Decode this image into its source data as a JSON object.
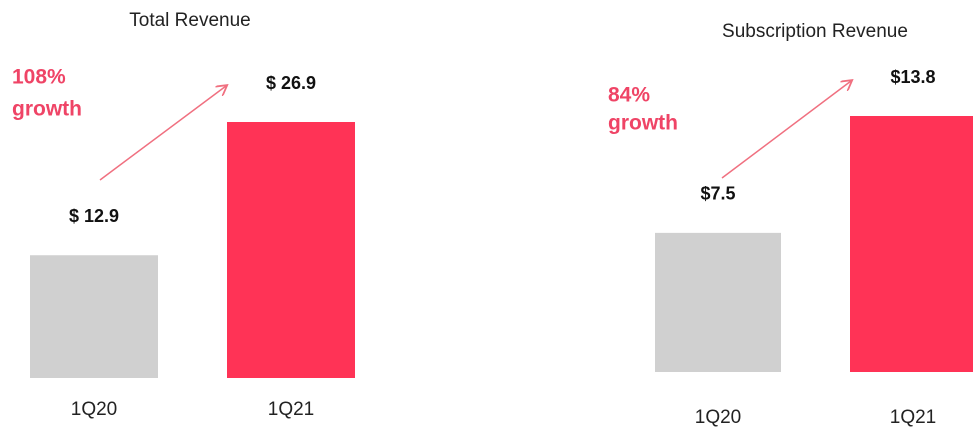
{
  "chart_data": [
    {
      "type": "bar",
      "title": "Total Revenue",
      "categories": [
        "1Q20",
        "1Q21"
      ],
      "values": [
        12.9,
        26.9
      ],
      "value_labels": [
        "$ 12.9",
        "$ 26.9"
      ],
      "colors": [
        "#d0d0d0",
        "#ff3356"
      ],
      "annotation": [
        "108%",
        "growth"
      ]
    },
    {
      "type": "bar",
      "title": "Subscription Revenue",
      "categories": [
        "1Q20",
        "1Q21"
      ],
      "values": [
        7.5,
        13.8
      ],
      "value_labels": [
        "$7.5",
        "$13.8"
      ],
      "colors": [
        "#d0d0d0",
        "#ff3356"
      ],
      "annotation": [
        "84%",
        "growth"
      ]
    }
  ]
}
